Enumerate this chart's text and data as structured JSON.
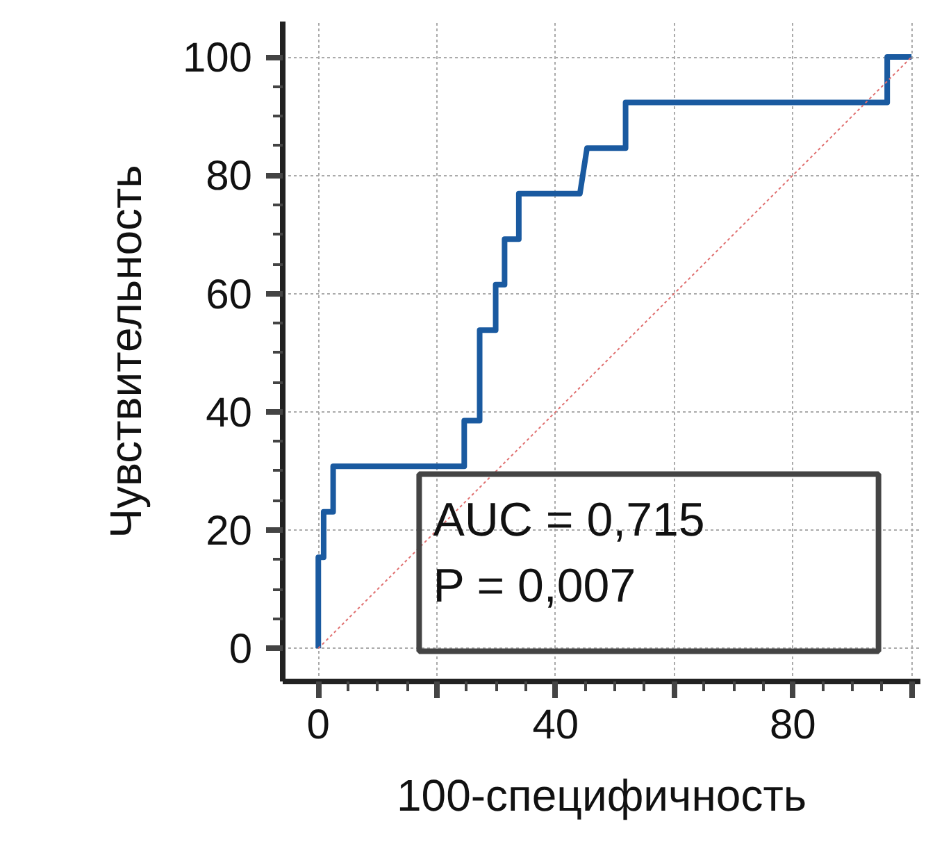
{
  "chart_data": {
    "type": "step",
    "xlabel": "100-специфичность",
    "ylabel": "Чувствительность",
    "xlim": [
      -6,
      101.5
    ],
    "ylim": [
      -5.6,
      106
    ],
    "xticks": [
      0,
      {
        "value": 20,
        "label": null
      },
      40,
      {
        "value": 60,
        "label": null
      },
      80,
      {
        "value": 100,
        "label": null
      }
    ],
    "yticks": [
      0,
      20,
      40,
      60,
      80,
      100
    ],
    "grid": true,
    "series": [
      {
        "color": "#1a5aa0",
        "line_style": "solid",
        "x": [
          0,
          0,
          0.9,
          0.9,
          2.5,
          2.5,
          24.6,
          24.6,
          27.2,
          27.2,
          29.9,
          29.9,
          31.4,
          31.4,
          33.8,
          33.8,
          44.1,
          45.3,
          51.8,
          51.8,
          95.9,
          95.9,
          100
        ],
        "values": [
          0,
          15.4,
          15.4,
          23.1,
          23.1,
          30.8,
          30.8,
          38.5,
          38.5,
          53.8,
          53.8,
          61.5,
          61.5,
          69.2,
          69.2,
          76.9,
          76.9,
          84.6,
          84.6,
          92.3,
          92.3,
          100,
          100
        ]
      },
      {
        "type": "line",
        "color": "#e07070",
        "line_style": "dotted",
        "x": [
          0,
          100
        ],
        "values": [
          0,
          100
        ]
      }
    ],
    "annotations": [
      "AUC = 0,715",
      "P = 0,007"
    ]
  }
}
